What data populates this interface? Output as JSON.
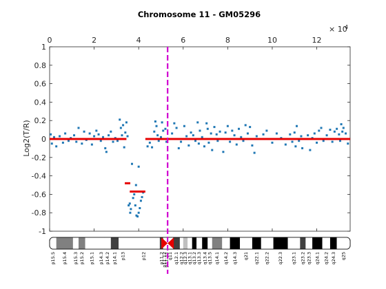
{
  "chart_data": {
    "type": "scatter",
    "title": "Chromosome 11 - GM05296",
    "ylabel": "Log2(T/R)",
    "x_multiplier": "× 10",
    "x_multiplier_exp": "4",
    "xlim": [
      0,
      13.5
    ],
    "ylim": [
      -1,
      1
    ],
    "xticks": [
      0,
      2,
      4,
      6,
      8,
      10,
      12
    ],
    "xtick_labels": [
      "0",
      "2",
      "4",
      "6",
      "8",
      "10",
      "12"
    ],
    "yticks": [
      1,
      0.8,
      0.6,
      0.4,
      0.2,
      0,
      -0.2,
      -0.4,
      -0.6,
      -0.8,
      -1
    ],
    "ytick_labels": [
      "1",
      "0.8",
      "0.6",
      "0.4",
      "0.2",
      "0",
      "-0.2",
      "-0.4",
      "-0.6",
      "-0.8",
      "-1"
    ],
    "centromere_x": 5.3,
    "colors": {
      "points": "#1f77b4",
      "segments": "#e60000",
      "centromere": "#d000d0",
      "axis": "#262626"
    },
    "segments": [
      {
        "x": [
          0.0,
          3.45
        ],
        "y": 0.0
      },
      {
        "x": 3.5,
        "y": -0.48
      },
      {
        "x": [
          3.6,
          4.3
        ],
        "y": -0.57
      },
      {
        "x": [
          4.3,
          13.5
        ],
        "y": 0.0
      }
    ],
    "points": [
      [
        0.05,
        0.05
      ],
      [
        0.1,
        -0.05
      ],
      [
        0.2,
        0.02
      ],
      [
        0.3,
        -0.08
      ],
      [
        0.45,
        0.03
      ],
      [
        0.6,
        -0.04
      ],
      [
        0.7,
        0.06
      ],
      [
        0.85,
        -0.02
      ],
      [
        0.95,
        0.01
      ],
      [
        1.1,
        0.04
      ],
      [
        1.2,
        -0.03
      ],
      [
        1.3,
        0.12
      ],
      [
        1.35,
        0.0
      ],
      [
        1.45,
        -0.05
      ],
      [
        1.55,
        0.08
      ],
      [
        1.65,
        -0.01
      ],
      [
        1.8,
        0.06
      ],
      [
        1.9,
        -0.06
      ],
      [
        2.0,
        0.03
      ],
      [
        2.1,
        0.09
      ],
      [
        2.2,
        0.05
      ],
      [
        2.3,
        -0.02
      ],
      [
        2.4,
        0.02
      ],
      [
        2.5,
        -0.1
      ],
      [
        2.55,
        -0.14
      ],
      [
        2.65,
        0.04
      ],
      [
        2.75,
        0.08
      ],
      [
        2.85,
        -0.03
      ],
      [
        2.95,
        0.01
      ],
      [
        3.05,
        -0.02
      ],
      [
        3.15,
        0.21
      ],
      [
        3.2,
        0.12
      ],
      [
        3.25,
        0.04
      ],
      [
        3.3,
        0.15
      ],
      [
        3.35,
        -0.09
      ],
      [
        3.4,
        0.07
      ],
      [
        3.45,
        0.18
      ],
      [
        3.5,
        0.03
      ],
      [
        3.55,
        -0.72
      ],
      [
        3.6,
        -0.7
      ],
      [
        3.62,
        -0.8
      ],
      [
        3.65,
        -0.76
      ],
      [
        3.7,
        -0.27
      ],
      [
        3.75,
        -0.64
      ],
      [
        3.8,
        -0.6
      ],
      [
        3.85,
        -0.72
      ],
      [
        3.9,
        -0.83
      ],
      [
        3.95,
        -0.84
      ],
      [
        4.0,
        -0.8
      ],
      [
        4.05,
        -0.75
      ],
      [
        4.1,
        -0.67
      ],
      [
        4.15,
        -0.63
      ],
      [
        4.2,
        -0.58
      ],
      [
        3.88,
        -0.5
      ],
      [
        4.0,
        -0.3
      ],
      [
        4.4,
        -0.08
      ],
      [
        4.5,
        -0.04
      ],
      [
        4.6,
        -0.09
      ],
      [
        4.7,
        0.08
      ],
      [
        4.75,
        0.19
      ],
      [
        4.8,
        0.14
      ],
      [
        4.85,
        0.04
      ],
      [
        4.9,
        -0.02
      ],
      [
        5.0,
        0.02
      ],
      [
        5.05,
        0.18
      ],
      [
        5.1,
        0.09
      ],
      [
        5.2,
        0.11
      ],
      [
        5.25,
        -0.03
      ],
      [
        5.5,
        0.06
      ],
      [
        5.6,
        0.17
      ],
      [
        5.7,
        0.12
      ],
      [
        5.8,
        -0.1
      ],
      [
        5.9,
        -0.03
      ],
      [
        6.05,
        0.14
      ],
      [
        6.15,
        0.03
      ],
      [
        6.25,
        -0.07
      ],
      [
        6.35,
        0.07
      ],
      [
        6.45,
        0.04
      ],
      [
        6.55,
        -0.02
      ],
      [
        6.65,
        0.18
      ],
      [
        6.7,
        -0.05
      ],
      [
        6.75,
        0.09
      ],
      [
        6.85,
        0.02
      ],
      [
        6.95,
        -0.08
      ],
      [
        7.05,
        0.17
      ],
      [
        7.1,
        0.11
      ],
      [
        7.15,
        -0.04
      ],
      [
        7.25,
        0.06
      ],
      [
        7.3,
        -0.12
      ],
      [
        7.4,
        0.13
      ],
      [
        7.5,
        0.05
      ],
      [
        7.55,
        -0.02
      ],
      [
        7.65,
        0.08
      ],
      [
        7.75,
        0.0
      ],
      [
        7.8,
        -0.14
      ],
      [
        7.9,
        0.07
      ],
      [
        8.0,
        0.14
      ],
      [
        8.1,
        -0.03
      ],
      [
        8.2,
        0.09
      ],
      [
        8.3,
        0.04
      ],
      [
        8.4,
        -0.06
      ],
      [
        8.5,
        0.11
      ],
      [
        8.6,
        0.02
      ],
      [
        8.7,
        -0.02
      ],
      [
        8.8,
        0.15
      ],
      [
        8.9,
        0.06
      ],
      [
        9.0,
        0.13
      ],
      [
        9.1,
        -0.07
      ],
      [
        9.2,
        -0.15
      ],
      [
        9.3,
        0.03
      ],
      [
        9.6,
        0.05
      ],
      [
        9.75,
        0.09
      ],
      [
        10.0,
        -0.04
      ],
      [
        10.2,
        0.06
      ],
      [
        10.4,
        0.01
      ],
      [
        10.6,
        -0.06
      ],
      [
        10.8,
        0.05
      ],
      [
        10.9,
        -0.03
      ],
      [
        11.0,
        0.07
      ],
      [
        11.05,
        -0.08
      ],
      [
        11.1,
        0.14
      ],
      [
        11.2,
        -0.02
      ],
      [
        11.3,
        0.03
      ],
      [
        11.35,
        -0.1
      ],
      [
        11.6,
        0.04
      ],
      [
        11.7,
        -0.12
      ],
      [
        11.8,
        0.01
      ],
      [
        11.9,
        0.06
      ],
      [
        12.0,
        -0.04
      ],
      [
        12.1,
        0.09
      ],
      [
        12.2,
        0.12
      ],
      [
        12.3,
        -0.02
      ],
      [
        12.45,
        0.04
      ],
      [
        12.6,
        0.1
      ],
      [
        12.7,
        -0.03
      ],
      [
        12.8,
        0.08
      ],
      [
        12.9,
        0.11
      ],
      [
        13.0,
        0.05
      ],
      [
        13.05,
        -0.02
      ],
      [
        13.1,
        0.16
      ],
      [
        13.15,
        0.08
      ],
      [
        13.2,
        0.12
      ],
      [
        13.3,
        0.06
      ],
      [
        13.4,
        -0.05
      ]
    ]
  },
  "ideogram": {
    "colors": {
      "black": "#000000",
      "dark": "#404040",
      "mid": "#808080",
      "light": "#c0c0c0",
      "white": "#ffffff",
      "centromere": "#e60000"
    },
    "bands": [
      {
        "name": "p15.5",
        "start": 0,
        "end": 0.3,
        "stain": "white"
      },
      {
        "name": "p15.4",
        "start": 0.3,
        "end": 1.05,
        "stain": "mid"
      },
      {
        "name": "p15.3",
        "start": 1.05,
        "end": 1.3,
        "stain": "white"
      },
      {
        "name": "p15.2",
        "start": 1.3,
        "end": 1.6,
        "stain": "mid"
      },
      {
        "name": "p15.1",
        "start": 1.6,
        "end": 2.2,
        "stain": "white"
      },
      {
        "name": "p14.3",
        "start": 2.2,
        "end": 2.45,
        "stain": "white"
      },
      {
        "name": "p14.2",
        "start": 2.45,
        "end": 2.75,
        "stain": "white"
      },
      {
        "name": "p14.1",
        "start": 2.75,
        "end": 3.1,
        "stain": "dark"
      },
      {
        "name": "p13",
        "start": 3.1,
        "end": 3.5,
        "stain": "white"
      },
      {
        "name": "p12",
        "start": 3.5,
        "end": 4.95,
        "stain": "white"
      },
      {
        "name": "p11.2",
        "start": 4.95,
        "end": 5.1,
        "stain": "dark"
      },
      {
        "name": "p11.12",
        "start": 5.1,
        "end": 5.2,
        "stain": "white"
      },
      {
        "name": "p11.11",
        "start": 5.2,
        "end": 5.3,
        "stain": "white"
      },
      {
        "name": "q11",
        "start": 5.3,
        "end": 5.55,
        "stain": "white"
      },
      {
        "name": "q12.1",
        "start": 5.55,
        "end": 5.85,
        "stain": "dark"
      },
      {
        "name": "q12.2",
        "start": 5.85,
        "end": 6.0,
        "stain": "white"
      },
      {
        "name": "q12.3",
        "start": 6.0,
        "end": 6.2,
        "stain": "light"
      },
      {
        "name": "q13.1",
        "start": 6.2,
        "end": 6.4,
        "stain": "white"
      },
      {
        "name": "q13.2",
        "start": 6.4,
        "end": 6.6,
        "stain": "black"
      },
      {
        "name": "q13.3",
        "start": 6.6,
        "end": 6.85,
        "stain": "white"
      },
      {
        "name": "q13.4",
        "start": 6.85,
        "end": 7.1,
        "stain": "black"
      },
      {
        "name": "q13.5",
        "start": 7.1,
        "end": 7.3,
        "stain": "white"
      },
      {
        "name": "q14.1",
        "start": 7.3,
        "end": 7.75,
        "stain": "mid"
      },
      {
        "name": "q14.2",
        "start": 7.75,
        "end": 8.1,
        "stain": "white"
      },
      {
        "name": "q14.3",
        "start": 8.1,
        "end": 8.55,
        "stain": "black"
      },
      {
        "name": "q21",
        "start": 8.55,
        "end": 9.1,
        "stain": "white"
      },
      {
        "name": "q22.1",
        "start": 9.1,
        "end": 9.5,
        "stain": "black"
      },
      {
        "name": "q22.2",
        "start": 9.5,
        "end": 10.05,
        "stain": "white"
      },
      {
        "name": "q22.3",
        "start": 10.05,
        "end": 10.7,
        "stain": "black"
      },
      {
        "name": "q23.1",
        "start": 10.7,
        "end": 11.25,
        "stain": "white"
      },
      {
        "name": "q23.2",
        "start": 11.25,
        "end": 11.5,
        "stain": "dark"
      },
      {
        "name": "q23.3",
        "start": 11.5,
        "end": 11.8,
        "stain": "white"
      },
      {
        "name": "q24.1",
        "start": 11.8,
        "end": 12.25,
        "stain": "black"
      },
      {
        "name": "q24.2",
        "start": 12.25,
        "end": 12.6,
        "stain": "white"
      },
      {
        "name": "q24.3",
        "start": 12.6,
        "end": 12.9,
        "stain": "black"
      },
      {
        "name": "q25",
        "start": 12.9,
        "end": 13.5,
        "stain": "white"
      }
    ]
  }
}
